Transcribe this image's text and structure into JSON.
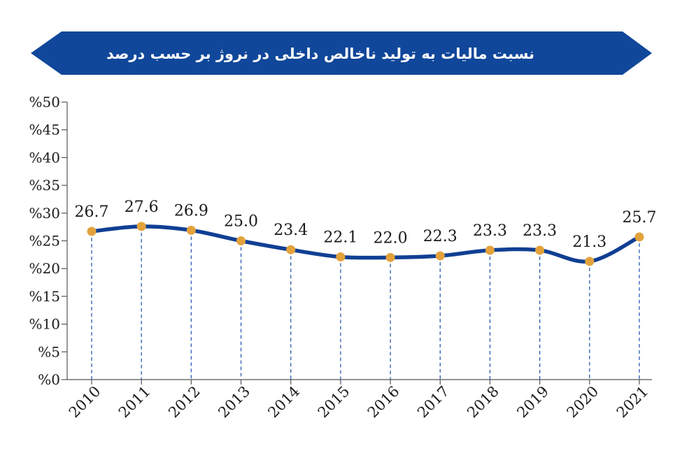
{
  "banner": {
    "title": "نسبت مالیات به تولید ناخالص داخلی در نروژ بر حسب درصد"
  },
  "colors": {
    "banner": "#10479a",
    "line": "#103f93",
    "marker": "#e3a23b",
    "guide": "#2a5bb0",
    "axis": "#555555"
  },
  "chart_data": {
    "type": "line",
    "title": "نسبت مالیات به تولید ناخالص داخلی در نروژ بر حسب درصد",
    "xlabel": "",
    "ylabel": "",
    "x": [
      "2010",
      "2011",
      "2012",
      "2013",
      "2014",
      "2015",
      "2016",
      "2017",
      "2018",
      "2019",
      "2020",
      "2021"
    ],
    "series": [
      {
        "values": [
          26.7,
          27.6,
          26.9,
          25.0,
          23.4,
          22.1,
          22.0,
          22.3,
          23.3,
          23.3,
          21.3,
          25.7
        ]
      }
    ],
    "value_labels": [
      "26.7",
      "27.6",
      "26.9",
      "25.0",
      "23.4",
      "22.1",
      "22.0",
      "22.3",
      "23.3",
      "23.3",
      "21.3",
      "25.7"
    ],
    "ylim": [
      0,
      50
    ],
    "yticks": [
      0,
      5,
      10,
      15,
      20,
      25,
      30,
      35,
      40,
      45,
      50
    ],
    "ytick_labels": [
      "%0",
      "%5",
      "%10",
      "%15",
      "%20",
      "%25",
      "%30",
      "%35",
      "%40",
      "%45",
      "%50"
    ],
    "grid": false,
    "legend": "none"
  }
}
